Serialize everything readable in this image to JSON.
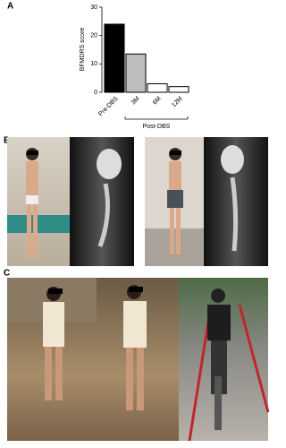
{
  "panel_labels": [
    "A",
    "B",
    "C"
  ],
  "chart_data": {
    "type": "bar",
    "ylabel": "BFMDRS score",
    "categories": [
      "Pre-DBS",
      "3M",
      "6M",
      "12M"
    ],
    "values": [
      24,
      13.5,
      3,
      2
    ],
    "colors": [
      "#000000",
      "#bdbdbd",
      "#ffffff",
      "#ffffff"
    ],
    "ylim": [
      0,
      30
    ],
    "yticks": [
      0,
      10,
      20,
      30
    ],
    "grid": false,
    "annotation": "Post-DBS"
  }
}
